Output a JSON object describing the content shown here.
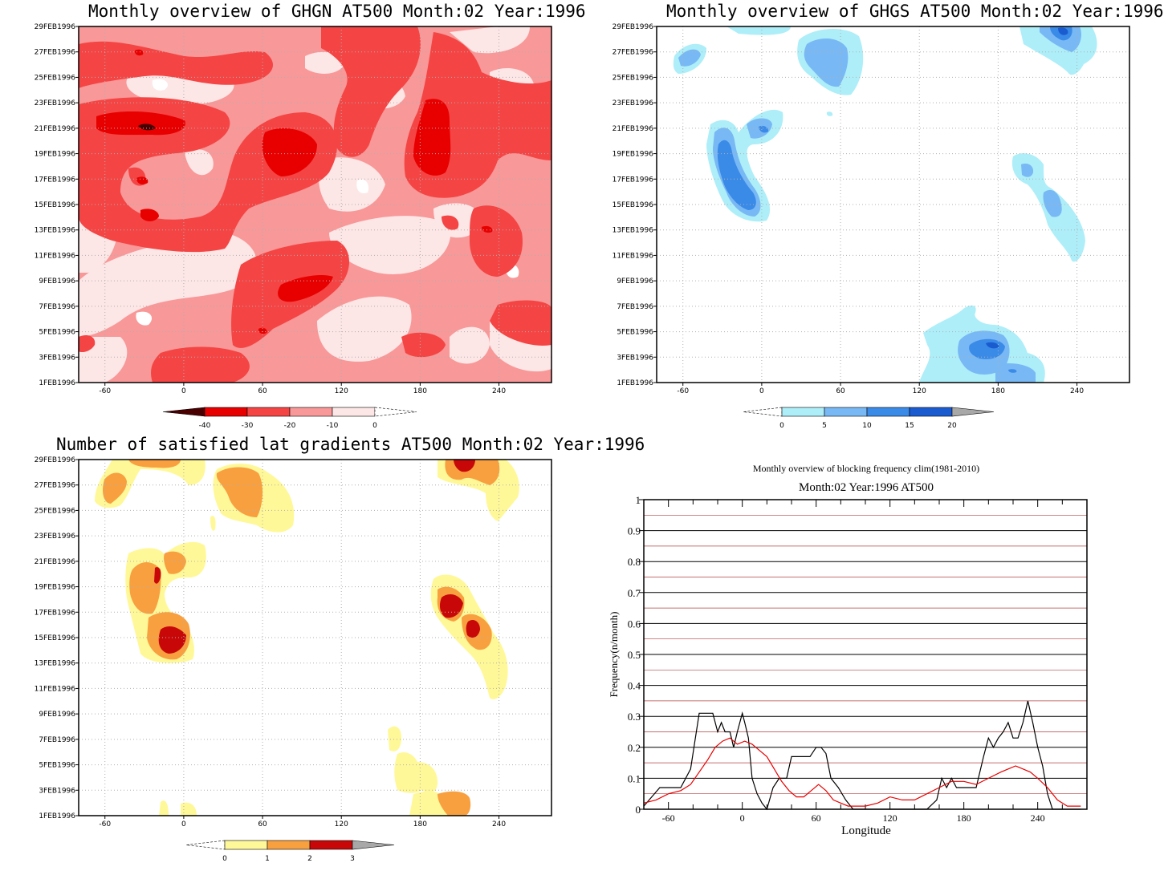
{
  "charts": [
    {
      "title": "Monthly overview of GHGN AT500 Month:02 Year:1996",
      "y_ticks": [
        "29FEB1996",
        "27FEB1996",
        "25FEB1996",
        "23FEB1996",
        "21FEB1996",
        "19FEB1996",
        "17FEB1996",
        "15FEB1996",
        "13FEB1996",
        "11FEB1996",
        "9FEB1996",
        "7FEB1996",
        "5FEB1996",
        "3FEB1996",
        "1FEB1996"
      ],
      "x_ticks": [
        "-60",
        "0",
        "60",
        "120",
        "180",
        "240"
      ],
      "colorbar": {
        "labels": [
          "-40",
          "-30",
          "-20",
          "-10",
          "0"
        ],
        "colors": [
          "#4a0000",
          "#e80000",
          "#f44444",
          "#f89898",
          "#fde6e6"
        ]
      }
    },
    {
      "title": "Monthly overview of GHGS AT500 Month:02 Year:1996",
      "y_ticks": [
        "29FEB1996",
        "27FEB1996",
        "25FEB1996",
        "23FEB1996",
        "21FEB1996",
        "19FEB1996",
        "17FEB1996",
        "15FEB1996",
        "13FEB1996",
        "11FEB1996",
        "9FEB1996",
        "7FEB1996",
        "5FEB1996",
        "3FEB1996",
        "1FEB1996"
      ],
      "x_ticks": [
        "-60",
        "0",
        "60",
        "120",
        "180",
        "240"
      ],
      "colorbar": {
        "labels": [
          "0",
          "5",
          "10",
          "15",
          "20"
        ],
        "colors": [
          "#aeeef8",
          "#78b8f4",
          "#3a8ae8",
          "#1a5cd0",
          "#a8a8a8"
        ]
      }
    },
    {
      "title": "Number of satisfied lat gradients AT500 Month:02 Year:1996",
      "y_ticks": [
        "29FEB1996",
        "27FEB1996",
        "25FEB1996",
        "23FEB1996",
        "21FEB1996",
        "19FEB1996",
        "17FEB1996",
        "15FEB1996",
        "13FEB1996",
        "11FEB1996",
        "9FEB1996",
        "7FEB1996",
        "5FEB1996",
        "3FEB1996",
        "1FEB1996"
      ],
      "x_ticks": [
        "-60",
        "0",
        "60",
        "120",
        "180",
        "240"
      ],
      "colorbar": {
        "labels": [
          "0",
          "1",
          "2",
          "3"
        ],
        "colors": [
          "#fff898",
          "#f8a040",
          "#c80808",
          "#a8a8a8"
        ]
      }
    }
  ],
  "chart_data": [
    {
      "type": "heatmap",
      "title": "Monthly overview of GHGN AT500 Month:02 Year:1996",
      "xlim": [
        -80,
        280
      ],
      "x_ticks": [
        -60,
        0,
        60,
        120,
        180,
        240
      ],
      "y_range": [
        "1FEB1996",
        "29FEB1996"
      ],
      "levels": [
        -40,
        -30,
        -20,
        -10,
        0
      ],
      "palette": "reds"
    },
    {
      "type": "heatmap",
      "title": "Monthly overview of GHGS AT500 Month:02 Year:1996",
      "xlim": [
        -80,
        280
      ],
      "x_ticks": [
        -60,
        0,
        60,
        120,
        180,
        240
      ],
      "y_range": [
        "1FEB1996",
        "29FEB1996"
      ],
      "levels": [
        0,
        5,
        10,
        15,
        20
      ],
      "palette": "blues"
    },
    {
      "type": "heatmap",
      "title": "Number of satisfied lat gradients AT500 Month:02 Year:1996",
      "xlim": [
        -80,
        280
      ],
      "x_ticks": [
        -60,
        0,
        60,
        120,
        180,
        240
      ],
      "y_range": [
        "1FEB1996",
        "29FEB1996"
      ],
      "levels": [
        0,
        1,
        2,
        3
      ],
      "palette": "yellow-orange-red"
    },
    {
      "type": "line",
      "title": "Monthly overview of blocking frequency clim(1981-2010)",
      "subtitle": "Month:02 Year:1996  AT500",
      "xlabel": "Longitude",
      "ylabel": "Frequency(n/month)",
      "xlim": [
        -80,
        280
      ],
      "ylim": [
        0,
        1
      ],
      "x_ticks": [
        -60,
        0,
        60,
        120,
        180,
        240
      ],
      "y_ticks": [
        0,
        0.1,
        0.2,
        0.3,
        0.4,
        0.5,
        0.6,
        0.7,
        0.8,
        0.9,
        1
      ],
      "grid": true,
      "series": [
        {
          "color": "#000000",
          "x": [
            -80,
            -67,
            -60,
            -50,
            -42,
            -35,
            -30,
            -24,
            -20,
            -17,
            -14,
            -10,
            -7,
            -4,
            0,
            2,
            5,
            8,
            12,
            16,
            20,
            25,
            30,
            36,
            40,
            45,
            50,
            55,
            60,
            64,
            68,
            72,
            78,
            84,
            90,
            100,
            110,
            130,
            150,
            158,
            162,
            166,
            170,
            174,
            178,
            182,
            186,
            190,
            196,
            200,
            204,
            208,
            212,
            216,
            220,
            224,
            228,
            232,
            236,
            240,
            244,
            248,
            252,
            256,
            262,
            268,
            275
          ],
          "y": [
            0.01,
            0.07,
            0.07,
            0.07,
            0.13,
            0.31,
            0.31,
            0.31,
            0.25,
            0.28,
            0.25,
            0.25,
            0.2,
            0.25,
            0.31,
            0.28,
            0.23,
            0.1,
            0.05,
            0.02,
            0.0,
            0.07,
            0.1,
            0.1,
            0.17,
            0.17,
            0.17,
            0.17,
            0.2,
            0.2,
            0.18,
            0.1,
            0.07,
            0.03,
            0.0,
            0.0,
            0.0,
            0.0,
            0.0,
            0.03,
            0.1,
            0.07,
            0.1,
            0.07,
            0.07,
            0.07,
            0.07,
            0.07,
            0.17,
            0.23,
            0.2,
            0.23,
            0.25,
            0.28,
            0.23,
            0.23,
            0.28,
            0.35,
            0.28,
            0.2,
            0.14,
            0.05,
            0.0,
            0.0,
            0.0,
            0.0,
            0.0
          ]
        },
        {
          "color": "#e80000",
          "x": [
            -80,
            -70,
            -60,
            -50,
            -42,
            -35,
            -28,
            -22,
            -16,
            -10,
            -4,
            2,
            8,
            14,
            20,
            26,
            32,
            38,
            44,
            50,
            56,
            62,
            68,
            74,
            80,
            86,
            92,
            100,
            110,
            120,
            130,
            140,
            150,
            160,
            170,
            180,
            190,
            200,
            210,
            216,
            222,
            228,
            234,
            240,
            248,
            256,
            264,
            275
          ],
          "y": [
            0.02,
            0.03,
            0.05,
            0.06,
            0.08,
            0.12,
            0.16,
            0.2,
            0.22,
            0.23,
            0.21,
            0.22,
            0.21,
            0.19,
            0.17,
            0.13,
            0.09,
            0.06,
            0.04,
            0.04,
            0.06,
            0.08,
            0.06,
            0.03,
            0.02,
            0.01,
            0.01,
            0.01,
            0.02,
            0.04,
            0.03,
            0.03,
            0.05,
            0.07,
            0.09,
            0.09,
            0.08,
            0.1,
            0.12,
            0.13,
            0.14,
            0.13,
            0.12,
            0.1,
            0.07,
            0.03,
            0.01,
            0.01
          ]
        }
      ]
    }
  ],
  "panel4": {
    "title": "Monthly overview of blocking frequency clim(1981-2010)",
    "subtitle": "Month:02 Year:1996  AT500",
    "xlabel": "Longitude",
    "ylabel": "Frequency(n/month)",
    "y_ticks": [
      "0",
      "0.1",
      "0.2",
      "0.3",
      "0.4",
      "0.5",
      "0.6",
      "0.7",
      "0.8",
      "0.9",
      "1"
    ],
    "x_ticks": [
      "-60",
      "0",
      "60",
      "120",
      "180",
      "240"
    ]
  }
}
